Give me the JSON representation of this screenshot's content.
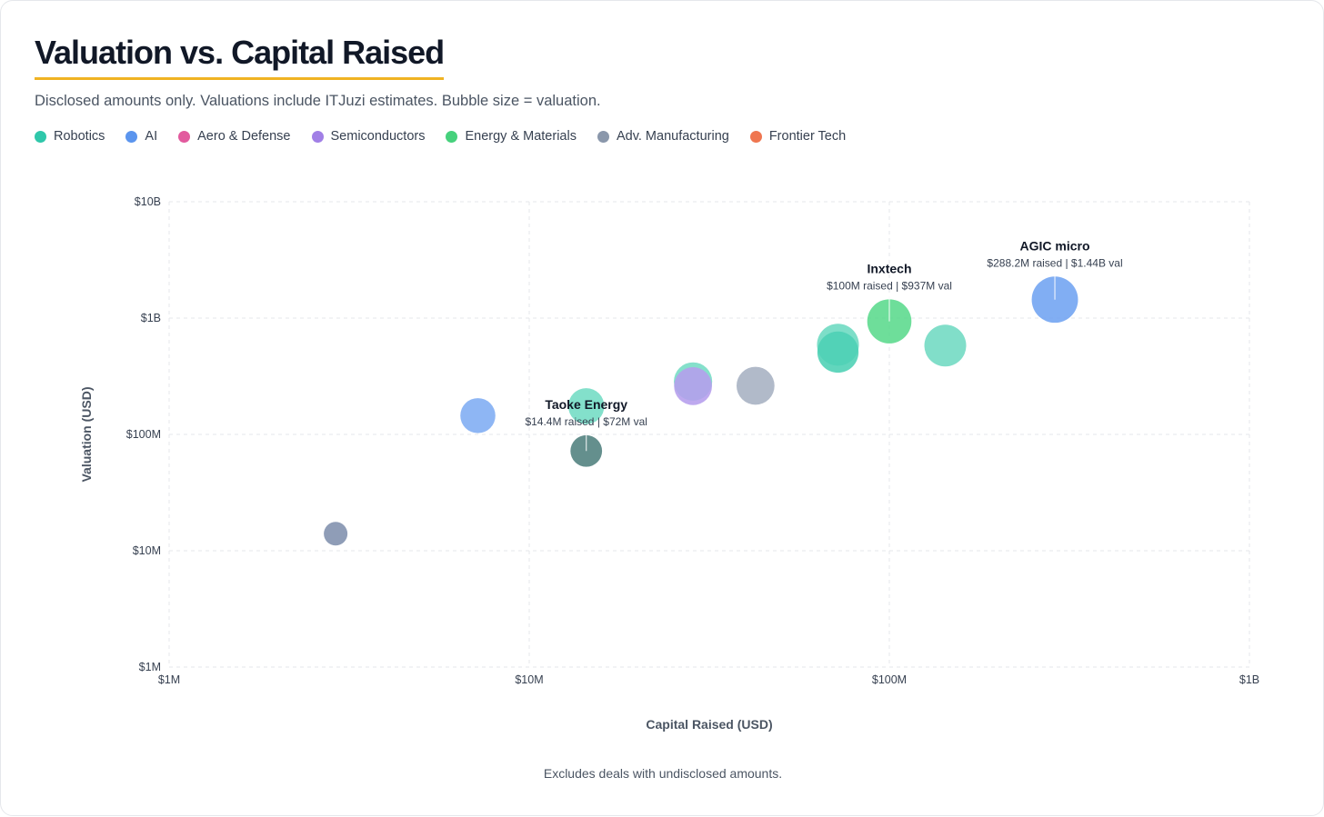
{
  "header": {
    "title": "Valuation vs. Capital Raised",
    "subtitle": "Disclosed amounts only. Valuations include ITJuzi estimates. Bubble size = valuation."
  },
  "legend": [
    {
      "label": "Robotics",
      "color": "#2fc7aa"
    },
    {
      "label": "AI",
      "color": "#5b95ee"
    },
    {
      "label": "Aero & Defense",
      "color": "#e25a9e"
    },
    {
      "label": "Semiconductors",
      "color": "#a17fe6"
    },
    {
      "label": "Energy & Materials",
      "color": "#46d17c"
    },
    {
      "label": "Adv. Manufacturing",
      "color": "#8a97ab"
    },
    {
      "label": "Frontier Tech",
      "color": "#ef7650"
    }
  ],
  "footnote": "Excludes deals with undisclosed amounts.",
  "chart_data": {
    "type": "scatter",
    "xlabel": "Capital Raised (USD)",
    "ylabel": "Valuation (USD)",
    "xscale": "log",
    "yscale": "log",
    "xlim": [
      1000000,
      1000000000
    ],
    "ylim": [
      1000000,
      10000000000
    ],
    "x_ticks": [
      {
        "value": 1000000,
        "label": "$1M"
      },
      {
        "value": 10000000,
        "label": "$10M"
      },
      {
        "value": 100000000,
        "label": "$100M"
      },
      {
        "value": 1000000000,
        "label": "$1B"
      }
    ],
    "y_ticks": [
      {
        "value": 1000000,
        "label": "$1M"
      },
      {
        "value": 10000000,
        "label": "$10M"
      },
      {
        "value": 100000000,
        "label": "$100M"
      },
      {
        "value": 1000000000,
        "label": "$1B"
      },
      {
        "value": 10000000000,
        "label": "$10B"
      }
    ],
    "grid": true,
    "size_encoding": "valuation",
    "points": [
      {
        "x": 2900000,
        "y": 14000000,
        "category": "Adv. Manufacturing",
        "color": "#7f8fad"
      },
      {
        "x": 7200000,
        "y": 145000000,
        "category": "AI",
        "color": "#7eacf3"
      },
      {
        "x": 14400000,
        "y": 175000000,
        "category": "Robotics",
        "color": "#72dcc4"
      },
      {
        "x": 14400000,
        "y": 72000000,
        "category": "Adv. Manufacturing",
        "color": "#4f7f7d",
        "label": "Taoke Energy",
        "sublabel": "$14.4M raised | $72M val"
      },
      {
        "x": 28500000,
        "y": 285000000,
        "category": "Robotics",
        "color": "#74dcc4"
      },
      {
        "x": 28500000,
        "y": 260000000,
        "category": "Semiconductors",
        "color": "#b59ded"
      },
      {
        "x": 42500000,
        "y": 262000000,
        "category": "Adv. Manufacturing",
        "color": "#a6b1c2"
      },
      {
        "x": 72000000,
        "y": 590000000,
        "category": "Robotics",
        "color": "#6bd9c0"
      },
      {
        "x": 72000000,
        "y": 510000000,
        "category": "Robotics",
        "color": "#4cd0b4"
      },
      {
        "x": 100000000,
        "y": 937000000,
        "category": "Energy & Materials",
        "color": "#5ad98c",
        "label": "Inxtech",
        "sublabel": "$100M raised | $937M val"
      },
      {
        "x": 143000000,
        "y": 580000000,
        "category": "Robotics",
        "color": "#6fd9c2"
      },
      {
        "x": 288200000,
        "y": 1440000000,
        "category": "AI",
        "color": "#6fa3f1",
        "label": "AGIC micro",
        "sublabel": "$288.2M raised | $1.44B val"
      }
    ]
  }
}
